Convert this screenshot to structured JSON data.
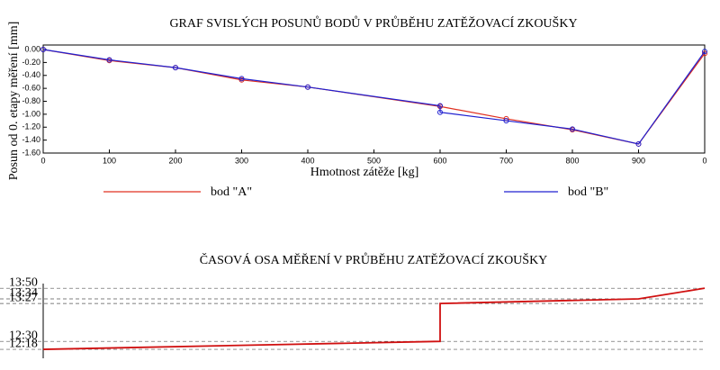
{
  "chart_data": [
    {
      "type": "line",
      "title": "GRAF SVISLÝCH POSUNŮ BODŮ V PRŮBĚHU ZATĚŽOVACÍ ZKOUŠKY",
      "x_label": "Hmotnost zátěže [kg]",
      "y_label": "Posun od 0. etapy měření [mm]",
      "xlim": [
        0,
        10
      ],
      "xticks": [
        0,
        {
          "value": 1,
          "label": "100"
        },
        {
          "value": 2,
          "label": "200"
        },
        {
          "value": 3,
          "label": "300"
        },
        {
          "value": 4,
          "label": "400"
        },
        {
          "value": 5,
          "label": "500"
        },
        {
          "value": 6,
          "label": "600"
        },
        {
          "value": 7,
          "label": "700"
        },
        {
          "value": 8,
          "label": "800"
        },
        {
          "value": 9,
          "label": "900"
        },
        {
          "value": 10,
          "label": "0"
        }
      ],
      "ylim": [
        -1.6,
        0.07
      ],
      "yticks": [
        {
          "value": 0,
          "label": "0.00"
        },
        {
          "value": -0.2,
          "label": "-0.20"
        },
        {
          "value": -0.4,
          "label": "-0.40"
        },
        {
          "value": -0.6,
          "label": "-0.60"
        },
        {
          "value": -0.8,
          "label": "-0.80"
        },
        {
          "value": -1,
          "label": "-1.00"
        },
        {
          "value": -1.2,
          "label": "-1.20"
        },
        {
          "value": -1.4,
          "label": "-1.40"
        },
        {
          "value": -1.6,
          "label": "-1.60"
        }
      ],
      "series": [
        {
          "name": "bod \"A\"",
          "color": "#e03020",
          "x": [
            0,
            1,
            2,
            3,
            4,
            6,
            7,
            8,
            9,
            10
          ],
          "values": [
            0,
            -0.17,
            -0.28,
            -0.47,
            -0.58,
            -0.88,
            -1.07,
            -1.24,
            -1.46,
            -0.06
          ]
        },
        {
          "name": "bod \"B\"",
          "color": "#2020d0",
          "x": [
            0,
            1,
            2,
            3,
            4,
            6,
            6,
            7,
            8,
            9,
            10
          ],
          "values": [
            0,
            -0.16,
            -0.28,
            -0.45,
            -0.58,
            -0.87,
            -0.97,
            -1.1,
            -1.23,
            -1.46,
            -0.03
          ]
        }
      ]
    },
    {
      "type": "line",
      "title": "ČASOVÁ OSA MĚŘENÍ V PRŮBĚHU ZATĚŽOVACÍ ZKOUŠKY",
      "xlim": [
        0,
        10
      ],
      "ylim": [
        724.5,
        837
      ],
      "yticks": [
        {
          "value": 830,
          "label": "13:50"
        },
        {
          "value": 814,
          "label": "13:34"
        },
        {
          "value": 807,
          "label": "13:27"
        },
        {
          "value": 750,
          "label": "12:30"
        },
        {
          "value": 738,
          "label": "12:18"
        }
      ],
      "series": [
        {
          "color": "#d01010",
          "x": [
            0,
            6,
            6,
            9,
            10
          ],
          "values": [
            738,
            750,
            807,
            814,
            830
          ]
        }
      ]
    }
  ]
}
